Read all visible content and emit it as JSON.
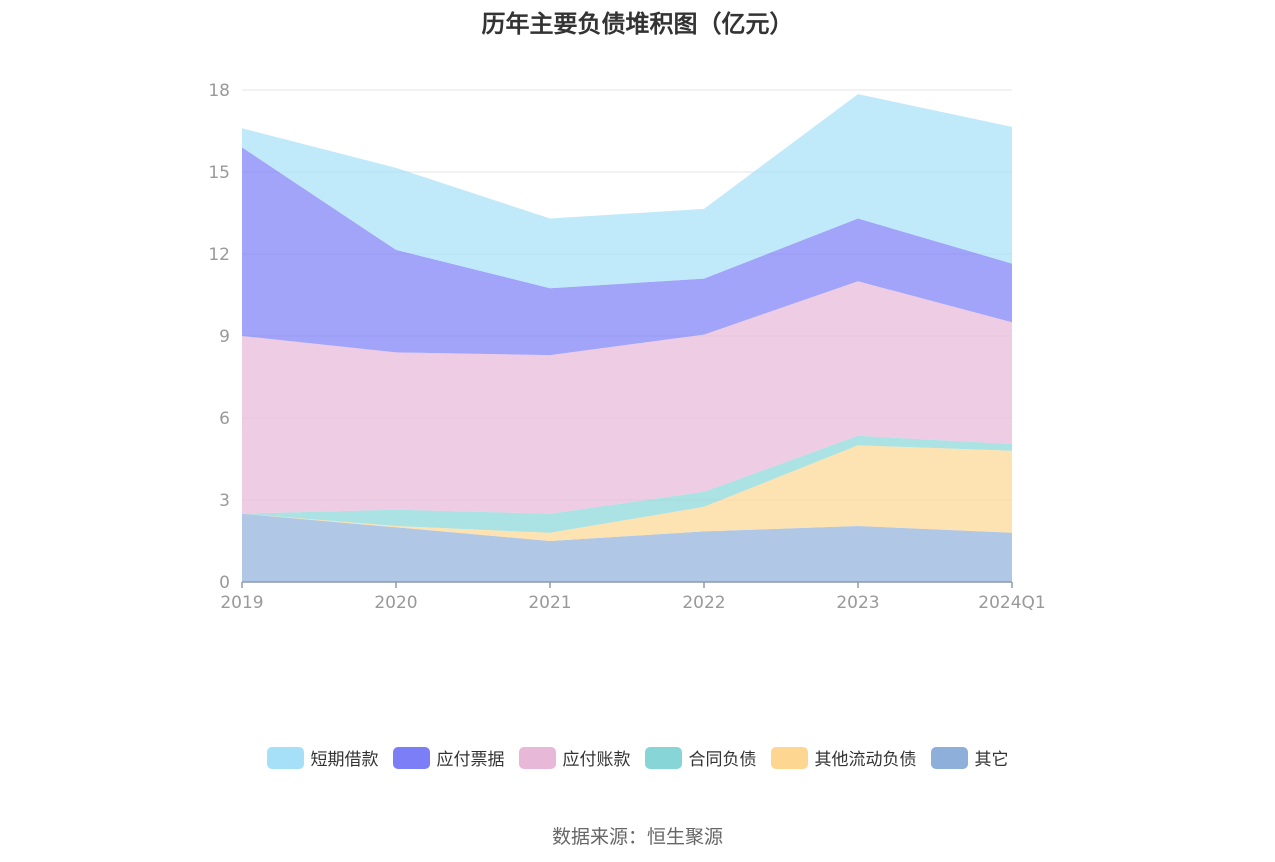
{
  "title": "历年主要负债堆积图（亿元）",
  "source": "数据来源：恒生聚源",
  "chart_data": {
    "type": "area",
    "stacked": true,
    "categories": [
      "2019",
      "2020",
      "2021",
      "2022",
      "2023",
      "2024Q1"
    ],
    "ylim": [
      0,
      18
    ],
    "yticks": [
      0,
      3,
      6,
      9,
      12,
      15,
      18
    ],
    "grid": true,
    "legend_position": "bottom",
    "series": [
      {
        "name": "其它",
        "color": "#8fafdb",
        "values": [
          2.5,
          2.0,
          1.5,
          1.85,
          2.05,
          1.8
        ]
      },
      {
        "name": "其他流动负债",
        "color": "#fdd791",
        "values": [
          0.0,
          0.05,
          0.3,
          0.9,
          2.95,
          3.0
        ]
      },
      {
        "name": "合同负债",
        "color": "#88d5d7",
        "values": [
          0.0,
          0.6,
          0.7,
          0.55,
          0.35,
          0.25
        ]
      },
      {
        "name": "应付账款",
        "color": "#e7b8d8",
        "values": [
          6.5,
          5.75,
          5.8,
          5.75,
          5.65,
          4.45
        ]
      },
      {
        "name": "应付票据",
        "color": "#7b7ef6",
        "values": [
          6.9,
          3.75,
          2.45,
          2.05,
          2.3,
          2.15
        ]
      },
      {
        "name": "短期借款",
        "color": "#a5dff8",
        "values": [
          0.7,
          3.0,
          2.55,
          2.55,
          4.55,
          5.0
        ]
      }
    ],
    "legend_order": [
      "短期借款",
      "应付票据",
      "应付账款",
      "合同负债",
      "其他流动负债",
      "其它"
    ]
  }
}
